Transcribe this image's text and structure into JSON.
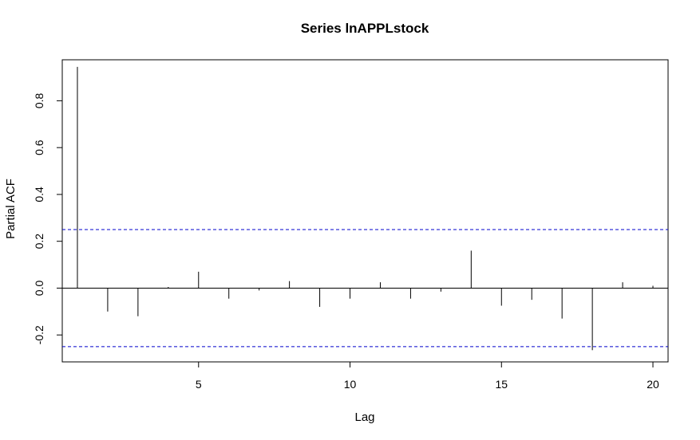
{
  "chart_data": {
    "type": "bar",
    "title": "Series  lnAPPLstock",
    "xlabel": "Lag",
    "ylabel": "Partial ACF",
    "x": [
      1,
      2,
      3,
      4,
      5,
      6,
      7,
      8,
      9,
      10,
      11,
      12,
      13,
      14,
      15,
      16,
      17,
      18,
      19,
      20
    ],
    "values": [
      0.945,
      -0.1,
      -0.12,
      0.005,
      0.07,
      -0.045,
      -0.01,
      0.03,
      -0.08,
      -0.045,
      0.025,
      -0.045,
      -0.015,
      0.16,
      -0.075,
      -0.05,
      -0.13,
      -0.265,
      0.025,
      0.01
    ],
    "xlim": [
      0.5,
      20.5
    ],
    "ylim": [
      -0.315,
      0.975
    ],
    "confidence_bound": 0.25,
    "xticks": [
      5,
      10,
      15,
      20
    ],
    "xtick_labels": [
      "5",
      "10",
      "15",
      "20"
    ],
    "yticks": [
      -0.2,
      0.0,
      0.2,
      0.4,
      0.6,
      0.8
    ],
    "ytick_labels": [
      "-0.2",
      "0.0",
      "0.2",
      "0.4",
      "0.6",
      "0.8"
    ],
    "bound_color": "#0000cc",
    "bar_color": "#000000"
  }
}
